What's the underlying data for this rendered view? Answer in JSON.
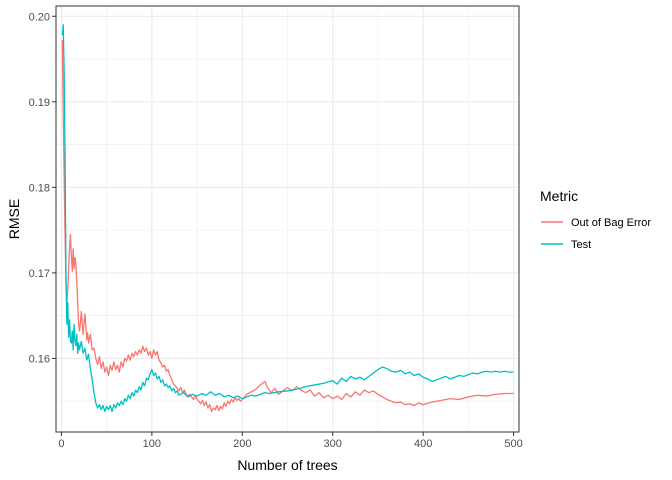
{
  "chart_data": {
    "type": "line",
    "xlabel": "Number of trees",
    "ylabel": "RMSE",
    "xlim": [
      -6,
      506
    ],
    "ylim": [
      0.1514,
      0.2012
    ],
    "x_ticks": [
      0,
      100,
      200,
      300,
      400,
      500
    ],
    "x_tick_labels": [
      "0",
      "100",
      "200",
      "300",
      "400",
      "500"
    ],
    "y_ticks": [
      0.16,
      0.17,
      0.18,
      0.19,
      0.2
    ],
    "y_tick_labels": [
      "0.16",
      "0.17",
      "0.18",
      "0.19",
      "0.20"
    ],
    "grid": true,
    "legend": {
      "title": "Metric",
      "position": "right"
    },
    "series": [
      {
        "name": "Out of Bag Error",
        "color": "#F8766D",
        "points": [
          [
            1,
            0.1972
          ],
          [
            2,
            0.1885
          ],
          [
            3,
            0.1812
          ],
          [
            4,
            0.1745
          ],
          [
            5,
            0.169
          ],
          [
            6,
            0.1665
          ],
          [
            7,
            0.168
          ],
          [
            8,
            0.1705
          ],
          [
            9,
            0.173
          ],
          [
            10,
            0.1745
          ],
          [
            11,
            0.172
          ],
          [
            12,
            0.1702
          ],
          [
            13,
            0.1728
          ],
          [
            14,
            0.1705
          ],
          [
            15,
            0.1718
          ],
          [
            16,
            0.171
          ],
          [
            17,
            0.169
          ],
          [
            18,
            0.1665
          ],
          [
            19,
            0.164
          ],
          [
            20,
            0.1632
          ],
          [
            21,
            0.1642
          ],
          [
            22,
            0.1655
          ],
          [
            23,
            0.164
          ],
          [
            24,
            0.1628
          ],
          [
            25,
            0.1642
          ],
          [
            26,
            0.1652
          ],
          [
            27,
            0.1638
          ],
          [
            28,
            0.1622
          ],
          [
            29,
            0.163
          ],
          [
            30,
            0.1618
          ],
          [
            32,
            0.1628
          ],
          [
            34,
            0.161
          ],
          [
            36,
            0.1612
          ],
          [
            38,
            0.16
          ],
          [
            40,
            0.1593
          ],
          [
            42,
            0.1602
          ],
          [
            44,
            0.1588
          ],
          [
            46,
            0.1596
          ],
          [
            48,
            0.1584
          ],
          [
            50,
            0.159
          ],
          [
            52,
            0.158
          ],
          [
            54,
            0.1592
          ],
          [
            56,
            0.1586
          ],
          [
            58,
            0.1596
          ],
          [
            60,
            0.1587
          ],
          [
            62,
            0.1592
          ],
          [
            64,
            0.1584
          ],
          [
            66,
            0.1596
          ],
          [
            68,
            0.159
          ],
          [
            70,
            0.16
          ],
          [
            72,
            0.1597
          ],
          [
            74,
            0.1604
          ],
          [
            76,
            0.1598
          ],
          [
            78,
            0.1606
          ],
          [
            80,
            0.1602
          ],
          [
            82,
            0.1608
          ],
          [
            84,
            0.1604
          ],
          [
            86,
            0.161
          ],
          [
            88,
            0.1606
          ],
          [
            90,
            0.1614
          ],
          [
            92,
            0.1608
          ],
          [
            94,
            0.1612
          ],
          [
            96,
            0.1604
          ],
          [
            98,
            0.1608
          ],
          [
            100,
            0.16
          ],
          [
            102,
            0.161
          ],
          [
            104,
            0.1604
          ],
          [
            106,
            0.1608
          ],
          [
            108,
            0.1598
          ],
          [
            110,
            0.1595
          ],
          [
            112,
            0.159
          ],
          [
            114,
            0.1592
          ],
          [
            116,
            0.1585
          ],
          [
            118,
            0.1587
          ],
          [
            120,
            0.158
          ],
          [
            122,
            0.1575
          ],
          [
            124,
            0.157
          ],
          [
            126,
            0.1568
          ],
          [
            128,
            0.1565
          ],
          [
            130,
            0.1562
          ],
          [
            132,
            0.1566
          ],
          [
            134,
            0.156
          ],
          [
            136,
            0.1563
          ],
          [
            138,
            0.1558
          ],
          [
            140,
            0.1556
          ],
          [
            142,
            0.1558
          ],
          [
            144,
            0.1555
          ],
          [
            146,
            0.1552
          ],
          [
            148,
            0.1556
          ],
          [
            150,
            0.1552
          ],
          [
            152,
            0.155
          ],
          [
            154,
            0.1547
          ],
          [
            156,
            0.1551
          ],
          [
            158,
            0.1545
          ],
          [
            160,
            0.1549
          ],
          [
            162,
            0.1542
          ],
          [
            164,
            0.1546
          ],
          [
            166,
            0.1538
          ],
          [
            168,
            0.1542
          ],
          [
            170,
            0.154
          ],
          [
            172,
            0.1545
          ],
          [
            174,
            0.1539
          ],
          [
            176,
            0.1544
          ],
          [
            178,
            0.1541
          ],
          [
            180,
            0.1548
          ],
          [
            182,
            0.1544
          ],
          [
            184,
            0.155
          ],
          [
            186,
            0.1547
          ],
          [
            188,
            0.1552
          ],
          [
            190,
            0.1549
          ],
          [
            192,
            0.1554
          ],
          [
            194,
            0.1551
          ],
          [
            196,
            0.1553
          ],
          [
            198,
            0.155
          ],
          [
            200,
            0.1552
          ],
          [
            205,
            0.1558
          ],
          [
            210,
            0.1561
          ],
          [
            215,
            0.1564
          ],
          [
            220,
            0.1569
          ],
          [
            225,
            0.1573
          ],
          [
            228,
            0.1566
          ],
          [
            232,
            0.156
          ],
          [
            236,
            0.1565
          ],
          [
            240,
            0.1558
          ],
          [
            245,
            0.1562
          ],
          [
            250,
            0.1566
          ],
          [
            255,
            0.1562
          ],
          [
            260,
            0.1567
          ],
          [
            265,
            0.1563
          ],
          [
            270,
            0.156
          ],
          [
            275,
            0.1563
          ],
          [
            280,
            0.1556
          ],
          [
            285,
            0.156
          ],
          [
            290,
            0.1554
          ],
          [
            295,
            0.1557
          ],
          [
            300,
            0.1553
          ],
          [
            305,
            0.1556
          ],
          [
            310,
            0.1552
          ],
          [
            315,
            0.1559
          ],
          [
            320,
            0.1555
          ],
          [
            325,
            0.1561
          ],
          [
            330,
            0.1557
          ],
          [
            335,
            0.1563
          ],
          [
            340,
            0.156
          ],
          [
            345,
            0.1562
          ],
          [
            350,
            0.1558
          ],
          [
            355,
            0.1555
          ],
          [
            360,
            0.1552
          ],
          [
            365,
            0.155
          ],
          [
            370,
            0.1548
          ],
          [
            375,
            0.1549
          ],
          [
            380,
            0.1546
          ],
          [
            385,
            0.1547
          ],
          [
            390,
            0.1545
          ],
          [
            395,
            0.1548
          ],
          [
            400,
            0.1546
          ],
          [
            410,
            0.1549
          ],
          [
            420,
            0.1551
          ],
          [
            430,
            0.1553
          ],
          [
            440,
            0.1552
          ],
          [
            450,
            0.1555
          ],
          [
            460,
            0.1557
          ],
          [
            470,
            0.1556
          ],
          [
            480,
            0.1558
          ],
          [
            490,
            0.1559
          ],
          [
            500,
            0.1559
          ]
        ]
      },
      {
        "name": "Test",
        "color": "#00BFC4",
        "points": [
          [
            1,
            0.1978
          ],
          [
            2,
            0.199
          ],
          [
            3,
            0.1935
          ],
          [
            4,
            0.184
          ],
          [
            5,
            0.17
          ],
          [
            6,
            0.164
          ],
          [
            7,
            0.1665
          ],
          [
            8,
            0.1625
          ],
          [
            9,
            0.1645
          ],
          [
            10,
            0.162
          ],
          [
            11,
            0.1618
          ],
          [
            12,
            0.1632
          ],
          [
            13,
            0.161
          ],
          [
            14,
            0.164
          ],
          [
            15,
            0.1622
          ],
          [
            16,
            0.1615
          ],
          [
            17,
            0.1628
          ],
          [
            18,
            0.1606
          ],
          [
            19,
            0.1618
          ],
          [
            20,
            0.161
          ],
          [
            22,
            0.162
          ],
          [
            24,
            0.1606
          ],
          [
            26,
            0.1612
          ],
          [
            28,
            0.1598
          ],
          [
            30,
            0.1605
          ],
          [
            32,
            0.1588
          ],
          [
            34,
            0.1575
          ],
          [
            36,
            0.156
          ],
          [
            38,
            0.1548
          ],
          [
            40,
            0.1542
          ],
          [
            42,
            0.1546
          ],
          [
            44,
            0.154
          ],
          [
            46,
            0.1545
          ],
          [
            48,
            0.1538
          ],
          [
            50,
            0.1544
          ],
          [
            52,
            0.154
          ],
          [
            54,
            0.1545
          ],
          [
            56,
            0.1538
          ],
          [
            58,
            0.1546
          ],
          [
            60,
            0.1542
          ],
          [
            62,
            0.1548
          ],
          [
            64,
            0.1545
          ],
          [
            66,
            0.155
          ],
          [
            68,
            0.1546
          ],
          [
            70,
            0.1553
          ],
          [
            72,
            0.155
          ],
          [
            74,
            0.1557
          ],
          [
            76,
            0.1553
          ],
          [
            78,
            0.156
          ],
          [
            80,
            0.1556
          ],
          [
            82,
            0.1563
          ],
          [
            84,
            0.156
          ],
          [
            86,
            0.1567
          ],
          [
            88,
            0.1563
          ],
          [
            90,
            0.1572
          ],
          [
            92,
            0.1568
          ],
          [
            94,
            0.1577
          ],
          [
            96,
            0.1575
          ],
          [
            98,
            0.1582
          ],
          [
            100,
            0.1587
          ],
          [
            102,
            0.158
          ],
          [
            104,
            0.1583
          ],
          [
            106,
            0.1576
          ],
          [
            108,
            0.1579
          ],
          [
            110,
            0.1572
          ],
          [
            112,
            0.1575
          ],
          [
            114,
            0.1568
          ],
          [
            116,
            0.157
          ],
          [
            118,
            0.1566
          ],
          [
            120,
            0.1568
          ],
          [
            122,
            0.1562
          ],
          [
            124,
            0.1565
          ],
          [
            126,
            0.156
          ],
          [
            128,
            0.1562
          ],
          [
            130,
            0.1557
          ],
          [
            135,
            0.156
          ],
          [
            140,
            0.1555
          ],
          [
            145,
            0.1558
          ],
          [
            150,
            0.1556
          ],
          [
            155,
            0.1559
          ],
          [
            160,
            0.1557
          ],
          [
            165,
            0.1561
          ],
          [
            170,
            0.1557
          ],
          [
            175,
            0.1559
          ],
          [
            180,
            0.1555
          ],
          [
            185,
            0.1557
          ],
          [
            190,
            0.1554
          ],
          [
            195,
            0.1556
          ],
          [
            200,
            0.1553
          ],
          [
            205,
            0.1555
          ],
          [
            210,
            0.1557
          ],
          [
            215,
            0.1556
          ],
          [
            220,
            0.1558
          ],
          [
            225,
            0.156
          ],
          [
            230,
            0.1559
          ],
          [
            240,
            0.1561
          ],
          [
            250,
            0.1562
          ],
          [
            260,
            0.1564
          ],
          [
            270,
            0.1567
          ],
          [
            280,
            0.1569
          ],
          [
            290,
            0.1571
          ],
          [
            300,
            0.1574
          ],
          [
            305,
            0.157
          ],
          [
            310,
            0.1577
          ],
          [
            315,
            0.1573
          ],
          [
            320,
            0.1579
          ],
          [
            325,
            0.1576
          ],
          [
            330,
            0.1578
          ],
          [
            335,
            0.1575
          ],
          [
            340,
            0.1579
          ],
          [
            345,
            0.1583
          ],
          [
            350,
            0.1587
          ],
          [
            355,
            0.159
          ],
          [
            360,
            0.1588
          ],
          [
            365,
            0.1585
          ],
          [
            370,
            0.1584
          ],
          [
            375,
            0.1586
          ],
          [
            380,
            0.1582
          ],
          [
            385,
            0.1584
          ],
          [
            390,
            0.158
          ],
          [
            395,
            0.1582
          ],
          [
            400,
            0.1578
          ],
          [
            405,
            0.1576
          ],
          [
            410,
            0.1573
          ],
          [
            415,
            0.1575
          ],
          [
            420,
            0.1577
          ],
          [
            425,
            0.1579
          ],
          [
            430,
            0.1576
          ],
          [
            435,
            0.1578
          ],
          [
            440,
            0.158
          ],
          [
            445,
            0.1579
          ],
          [
            450,
            0.1581
          ],
          [
            455,
            0.1583
          ],
          [
            460,
            0.1582
          ],
          [
            465,
            0.1584
          ],
          [
            470,
            0.1585
          ],
          [
            475,
            0.1584
          ],
          [
            480,
            0.1585
          ],
          [
            485,
            0.1584
          ],
          [
            490,
            0.1585
          ],
          [
            495,
            0.1584
          ],
          [
            500,
            0.1584
          ]
        ]
      }
    ]
  }
}
